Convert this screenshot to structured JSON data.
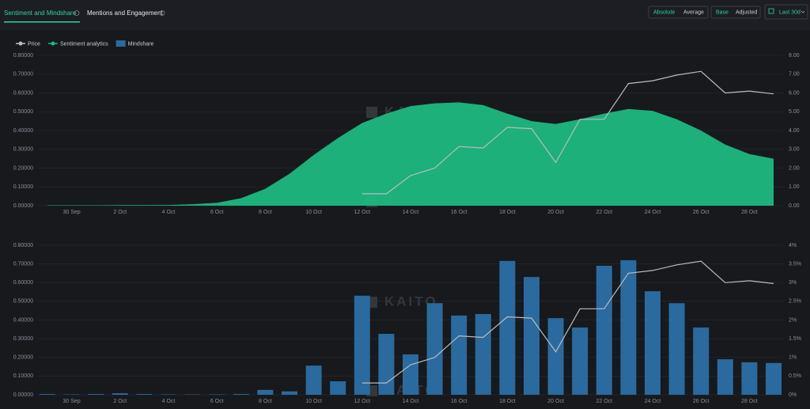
{
  "tabs": [
    "Sentiment and Mindshare",
    "Mentions and Engagement"
  ],
  "buttons": {
    "mode": [
      "Absolute",
      "Average"
    ],
    "base": [
      "Base",
      "Adjusted"
    ],
    "range": "Last 30d"
  },
  "watermark": "KAITO",
  "chart_data": [
    {
      "type": "line-area",
      "categories": [
        null,
        "30 Sep",
        null,
        "2 Oct",
        null,
        "4 Oct",
        null,
        "6 Oct",
        null,
        "8 Oct",
        null,
        "10 Oct",
        null,
        "12 Oct",
        null,
        "14 Oct",
        null,
        "16 Oct",
        null,
        "18 Oct",
        null,
        "20 Oct",
        null,
        "22 Oct",
        null,
        "24 Oct",
        null,
        "26 Oct",
        null,
        "28 Oct",
        null
      ],
      "series": [
        {
          "name": "Price",
          "color": "#b9bcc2",
          "kind": "line",
          "values": [
            null,
            null,
            null,
            null,
            null,
            null,
            null,
            null,
            null,
            null,
            null,
            null,
            null,
            0.063,
            0.063,
            0.16,
            0.2,
            0.315,
            0.307,
            0.417,
            0.41,
            0.23,
            0.46,
            0.46,
            0.65,
            0.665,
            0.695,
            0.715,
            0.6,
            0.61,
            0.595
          ]
        },
        {
          "name": "Sentiment analytics",
          "color": "#1db87f",
          "kind": "area",
          "axis": "y2",
          "values": [
            0.02,
            0.02,
            0.02,
            0.03,
            0.03,
            0.04,
            0.08,
            0.15,
            0.4,
            0.9,
            1.7,
            2.7,
            3.6,
            4.4,
            4.9,
            5.3,
            5.45,
            5.5,
            5.35,
            4.9,
            4.5,
            4.35,
            4.6,
            4.9,
            5.15,
            5.05,
            4.6,
            4.0,
            3.25,
            2.75,
            2.5
          ]
        }
      ],
      "ylim": [
        0,
        0.8
      ],
      "yticks": [
        {
          "value": 0,
          "label": "0.00000"
        },
        {
          "value": 0.1,
          "label": "0.10000"
        },
        {
          "value": 0.2,
          "label": "0.20000"
        },
        {
          "value": 0.3,
          "label": "0.30000"
        },
        {
          "value": 0.4,
          "label": "0.40000"
        },
        {
          "value": 0.5,
          "label": "0.50000"
        },
        {
          "value": 0.6,
          "label": "0.60000"
        },
        {
          "value": 0.7,
          "label": "0.70000"
        },
        {
          "value": 0.8,
          "label": "0.80000"
        }
      ],
      "y2lim": [
        0,
        8
      ],
      "y2ticks": [
        {
          "value": 0,
          "label": "0.00"
        },
        {
          "value": 1,
          "label": "1.00"
        },
        {
          "value": 2,
          "label": "2.00"
        },
        {
          "value": 3,
          "label": "3.00"
        },
        {
          "value": 4,
          "label": "4.00"
        },
        {
          "value": 5,
          "label": "5.00"
        },
        {
          "value": 6,
          "label": "6.00"
        },
        {
          "value": 7,
          "label": "7.00"
        },
        {
          "value": 8,
          "label": "8.00"
        }
      ],
      "grid": true
    },
    {
      "type": "bar-line",
      "categories": [
        null,
        "30 Sep",
        null,
        "2 Oct",
        null,
        "4 Oct",
        null,
        "6 Oct",
        null,
        "8 Oct",
        null,
        "10 Oct",
        null,
        "12 Oct",
        null,
        "14 Oct",
        null,
        "16 Oct",
        null,
        "18 Oct",
        null,
        "20 Oct",
        null,
        "22 Oct",
        null,
        "24 Oct",
        null,
        "26 Oct",
        null,
        "28 Oct",
        null
      ],
      "series": [
        {
          "name": "Mindshare",
          "color": "#2a6a9e",
          "kind": "bar",
          "axis": "y2",
          "values": [
            0.02,
            0.01,
            0.02,
            0.04,
            0.02,
            0.01,
            0.01,
            0.01,
            0.02,
            0.13,
            0.09,
            0.78,
            0.36,
            2.65,
            1.63,
            1.08,
            2.45,
            2.12,
            2.16,
            3.58,
            3.15,
            2.05,
            1.8,
            3.45,
            3.6,
            2.77,
            2.45,
            1.8,
            0.95,
            0.87,
            0.85
          ]
        },
        {
          "name": "Price",
          "color": "#b9bcc2",
          "kind": "line",
          "values": [
            null,
            null,
            null,
            null,
            null,
            null,
            null,
            null,
            null,
            null,
            null,
            null,
            null,
            0.063,
            0.063,
            0.16,
            0.2,
            0.315,
            0.307,
            0.417,
            0.41,
            0.23,
            0.46,
            0.46,
            0.65,
            0.665,
            0.695,
            0.715,
            0.6,
            0.61,
            0.595
          ]
        }
      ],
      "ylim": [
        0,
        0.8
      ],
      "yticks": [
        {
          "value": 0,
          "label": "0.00000"
        },
        {
          "value": 0.1,
          "label": "0.10000"
        },
        {
          "value": 0.2,
          "label": "0.20000"
        },
        {
          "value": 0.3,
          "label": "0.30000"
        },
        {
          "value": 0.4,
          "label": "0.40000"
        },
        {
          "value": 0.5,
          "label": "0.50000"
        },
        {
          "value": 0.6,
          "label": "0.60000"
        },
        {
          "value": 0.7,
          "label": "0.70000"
        },
        {
          "value": 0.8,
          "label": "0.80000"
        }
      ],
      "y2lim": [
        0,
        4
      ],
      "y2ticks": [
        {
          "value": 0,
          "label": "0%"
        },
        {
          "value": 0.5,
          "label": "0.5%"
        },
        {
          "value": 1,
          "label": "1%"
        },
        {
          "value": 1.5,
          "label": "1.5%"
        },
        {
          "value": 2,
          "label": "2%"
        },
        {
          "value": 2.5,
          "label": "2.5%"
        },
        {
          "value": 3,
          "label": "3%"
        },
        {
          "value": 3.5,
          "label": "3.5%"
        },
        {
          "value": 4,
          "label": "4%"
        }
      ],
      "grid": true
    }
  ]
}
